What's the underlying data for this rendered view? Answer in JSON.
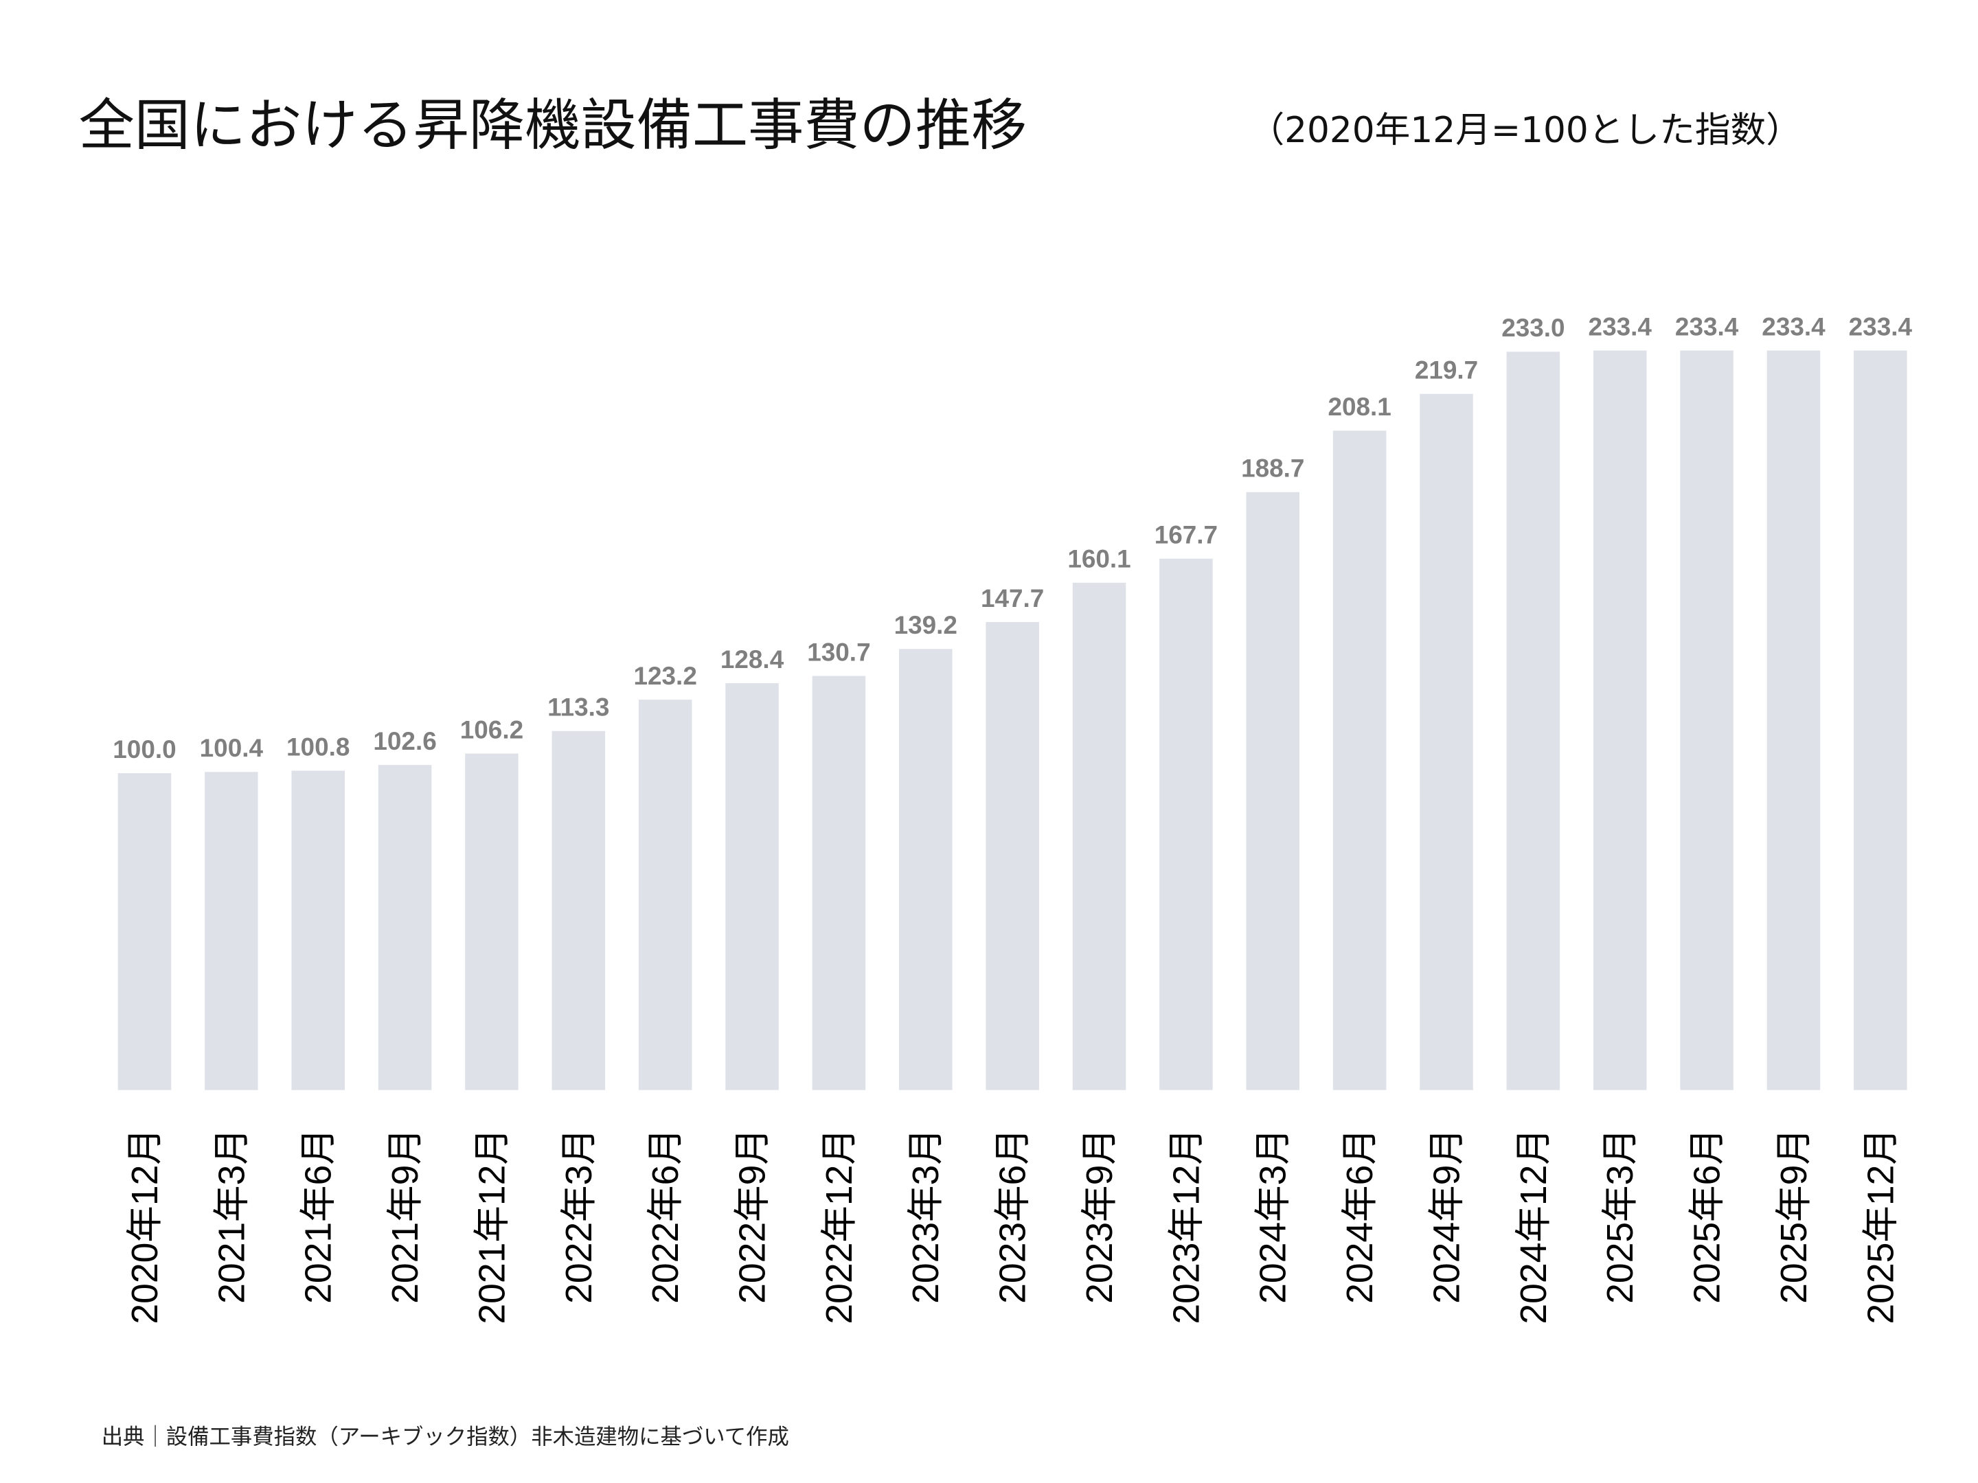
{
  "chart_data": {
    "type": "bar",
    "title": "全国における昇降機設備工事費の推移",
    "subtitle": "（2020年12月=100とした指数）",
    "categories": [
      "2020年12月",
      "2021年3月",
      "2021年6月",
      "2021年9月",
      "2021年12月",
      "2022年3月",
      "2022年6月",
      "2022年9月",
      "2022年12月",
      "2023年3月",
      "2023年6月",
      "2023年9月",
      "2023年12月",
      "2024年3月",
      "2024年6月",
      "2024年9月",
      "2024年12月",
      "2025年3月",
      "2025年6月",
      "2025年9月",
      "2025年12月"
    ],
    "values": [
      100.0,
      100.4,
      100.8,
      102.6,
      106.2,
      113.3,
      123.2,
      128.4,
      130.7,
      139.2,
      147.7,
      160.1,
      167.7,
      188.7,
      208.1,
      219.7,
      233.0,
      233.4,
      233.4,
      233.4,
      233.4
    ],
    "value_labels": [
      "100.0",
      "100.4",
      "100.8",
      "102.6",
      "106.2",
      "113.3",
      "123.2",
      "128.4",
      "130.7",
      "139.2",
      "147.7",
      "160.1",
      "167.7",
      "188.7",
      "208.1",
      "219.7",
      "233.0",
      "233.4",
      "233.4",
      "233.4",
      "233.4"
    ],
    "ylim": [
      0,
      240
    ],
    "grid": false,
    "y_axis_shown": false,
    "legend": "none",
    "bar_color": "#dee2e8",
    "label_color": "#7f7f7f",
    "footnote": "出典｜設備工事費指数（アーキブック指数）非木造建物に基づいて作成"
  }
}
